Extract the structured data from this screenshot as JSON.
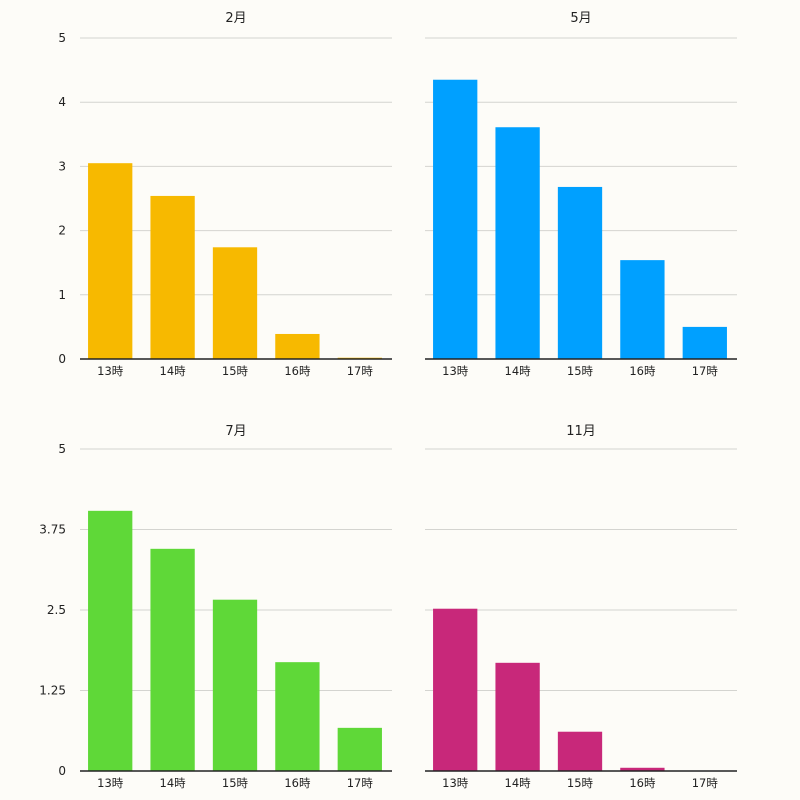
{
  "chart_data": [
    {
      "type": "bar",
      "title": "2月",
      "categories": [
        "13時",
        "14時",
        "15時",
        "16時",
        "17時"
      ],
      "values": [
        3.05,
        2.54,
        1.74,
        0.39,
        0.02
      ],
      "color": "#f7b900",
      "ylim": [
        0,
        5
      ],
      "yticks": [
        0,
        1,
        2,
        3,
        4,
        5
      ],
      "ytick_labels": [
        "0",
        "1",
        "2",
        "3",
        "4",
        "5"
      ],
      "show_ytick_labels": true,
      "grid": true,
      "xlabel": "",
      "ylabel": ""
    },
    {
      "type": "bar",
      "title": "5月",
      "categories": [
        "13時",
        "14時",
        "15時",
        "16時",
        "17時"
      ],
      "values": [
        4.35,
        3.61,
        2.68,
        1.54,
        0.5
      ],
      "color": "#00a0ff",
      "ylim": [
        0,
        5
      ],
      "yticks": [
        0,
        1,
        2,
        3,
        4,
        5
      ],
      "ytick_labels": [
        "0",
        "1",
        "2",
        "3",
        "4",
        "5"
      ],
      "show_ytick_labels": false,
      "grid": true,
      "xlabel": "",
      "ylabel": ""
    },
    {
      "type": "bar",
      "title": "7月",
      "categories": [
        "13時",
        "14時",
        "15時",
        "16時",
        "17時"
      ],
      "values": [
        4.04,
        3.45,
        2.66,
        1.69,
        0.67
      ],
      "color": "#5fd838",
      "ylim": [
        0,
        5
      ],
      "yticks": [
        0,
        1.25,
        2.5,
        3.75,
        5
      ],
      "ytick_labels": [
        "0",
        "1.25",
        "2.5",
        "3.75",
        "5"
      ],
      "show_ytick_labels": true,
      "grid": true,
      "xlabel": "",
      "ylabel": ""
    },
    {
      "type": "bar",
      "title": "11月",
      "categories": [
        "13時",
        "14時",
        "15時",
        "16時",
        "17時"
      ],
      "values": [
        2.52,
        1.68,
        0.61,
        0.05,
        0
      ],
      "color": "#c8287a",
      "ylim": [
        0,
        5
      ],
      "yticks": [
        0,
        1.25,
        2.5,
        3.75,
        5
      ],
      "ytick_labels": [
        "0",
        "1.25",
        "2.5",
        "3.75",
        "5"
      ],
      "show_ytick_labels": false,
      "grid": true,
      "xlabel": "",
      "ylabel": ""
    }
  ]
}
